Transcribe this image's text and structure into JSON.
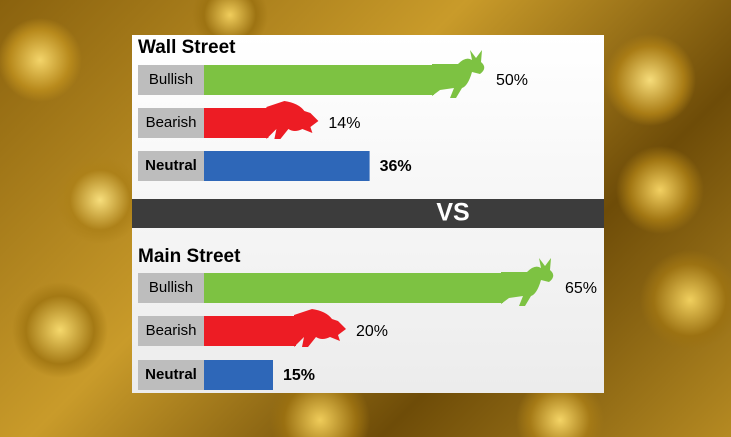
{
  "chart_data": [
    {
      "type": "bar",
      "title": "Wall Street",
      "categories": [
        "Bullish",
        "Bearish",
        "Neutral"
      ],
      "values": [
        50,
        14,
        36
      ],
      "value_labels": [
        "50%",
        "14%",
        "36%"
      ],
      "colors": [
        "#7dc242",
        "#ed1c24",
        "#2e67b8"
      ]
    },
    {
      "type": "bar",
      "title": "Main Street",
      "categories": [
        "Bullish",
        "Bearish",
        "Neutral"
      ],
      "values": [
        65,
        20,
        15
      ],
      "value_labels": [
        "65%",
        "20%",
        "15%"
      ],
      "colors": [
        "#7dc242",
        "#ed1c24",
        "#2e67b8"
      ]
    }
  ],
  "divider": "VS"
}
